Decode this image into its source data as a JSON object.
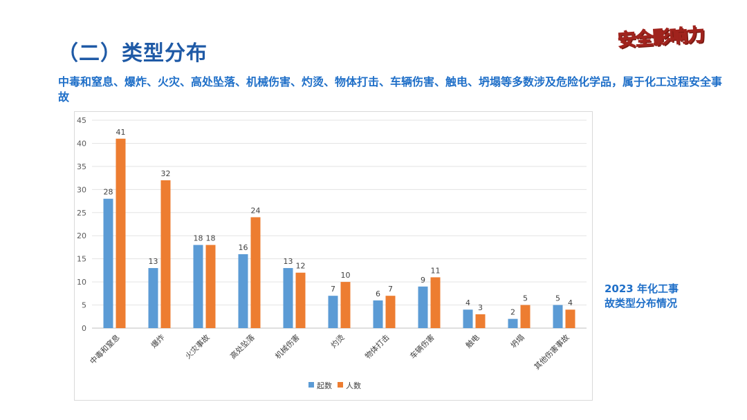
{
  "header": {
    "title": "（二）类型分布",
    "logo_text": "安全影响力",
    "description": "中毒和窒息、爆炸、火灾、高处坠落、机械伤害、灼烫、物体打击、车辆伤害、触电、坍塌等多数涉及危险化学品，属于化工过程安全事故"
  },
  "side_note": "2023 年化工事\n故类型分布情况",
  "chart_data": {
    "type": "bar",
    "title": "",
    "xlabel": "",
    "ylabel": "",
    "ylim": [
      0,
      45
    ],
    "yticks": [
      0,
      5,
      10,
      15,
      20,
      25,
      30,
      35,
      40,
      45
    ],
    "grid": true,
    "legend_position": "bottom",
    "categories": [
      "中毒和窒息",
      "爆炸",
      "火灾事故",
      "高处坠落",
      "机械伤害",
      "灼烫",
      "物体打击",
      "车辆伤害",
      "触电",
      "坍塌",
      "其他伤害事故"
    ],
    "series": [
      {
        "name": "起数",
        "color": "#5b9bd5",
        "values": [
          28,
          13,
          18,
          16,
          13,
          7,
          6,
          9,
          4,
          2,
          5
        ]
      },
      {
        "name": "人数",
        "color": "#ed7d31",
        "values": [
          41,
          32,
          18,
          24,
          12,
          10,
          7,
          11,
          3,
          5,
          4
        ]
      }
    ]
  }
}
